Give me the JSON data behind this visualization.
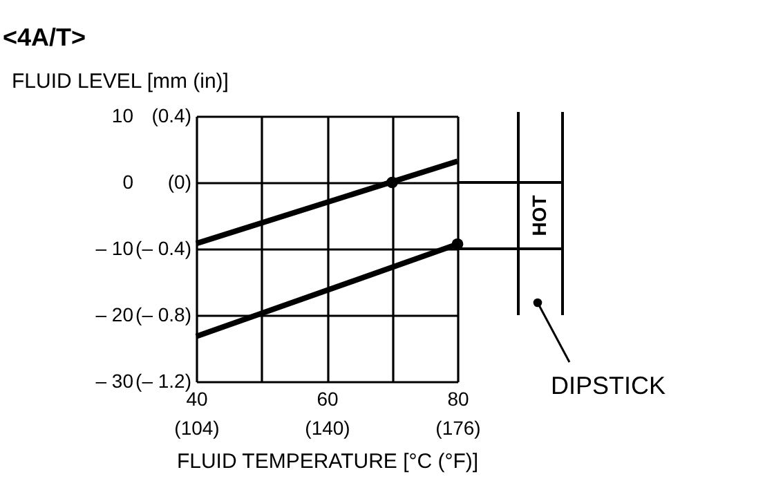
{
  "chart_data": {
    "type": "line",
    "title": "<4A/T>",
    "ylabel": "FLUID LEVEL [mm (in)]",
    "xlabel": "FLUID TEMPERATURE [°C (°F)]",
    "xlim": [
      40,
      80
    ],
    "ylim": [
      -30,
      10
    ],
    "xticks": [
      40,
      {
        "value": 50,
        "label": null
      },
      60,
      {
        "value": 70,
        "label": null
      },
      80
    ],
    "yticks": [
      10,
      0,
      {
        "value": -10,
        "label": "– 10"
      },
      {
        "value": -20,
        "label": "– 20"
      },
      {
        "value": -30,
        "label": "– 30"
      }
    ],
    "x2lim": [
      104,
      176
    ],
    "x2ticks": [
      {
        "value": 104,
        "label": "(104)"
      },
      {
        "value": 140,
        "label": "(140)"
      },
      {
        "value": 176,
        "label": "(176)"
      }
    ],
    "y2lim": [
      -1.2,
      0.4
    ],
    "y2ticks": [
      {
        "value": 0.4,
        "label": "(0.4)"
      },
      {
        "value": 0,
        "label": "(0)"
      },
      {
        "value": -0.4,
        "label": "(– 0.4)"
      },
      {
        "value": -0.8,
        "label": "(– 0.8)"
      },
      {
        "value": -1.2,
        "label": "(– 1.2)"
      }
    ],
    "grid": true,
    "series": [
      {
        "color": "#000000",
        "x": [
          40,
          80
        ],
        "values": [
          -9.2,
          3.2
        ]
      },
      {
        "color": "#000000",
        "x": [
          40,
          80
        ],
        "values": [
          -23.2,
          -9.3
        ]
      },
      {
        "type": "scatter",
        "color": "#000000",
        "marker": "circle",
        "x": [
          70,
          80
        ],
        "values": [
          0,
          -9.3
        ]
      }
    ],
    "annotations": [
      "HOT",
      "DIPSTICK"
    ]
  }
}
